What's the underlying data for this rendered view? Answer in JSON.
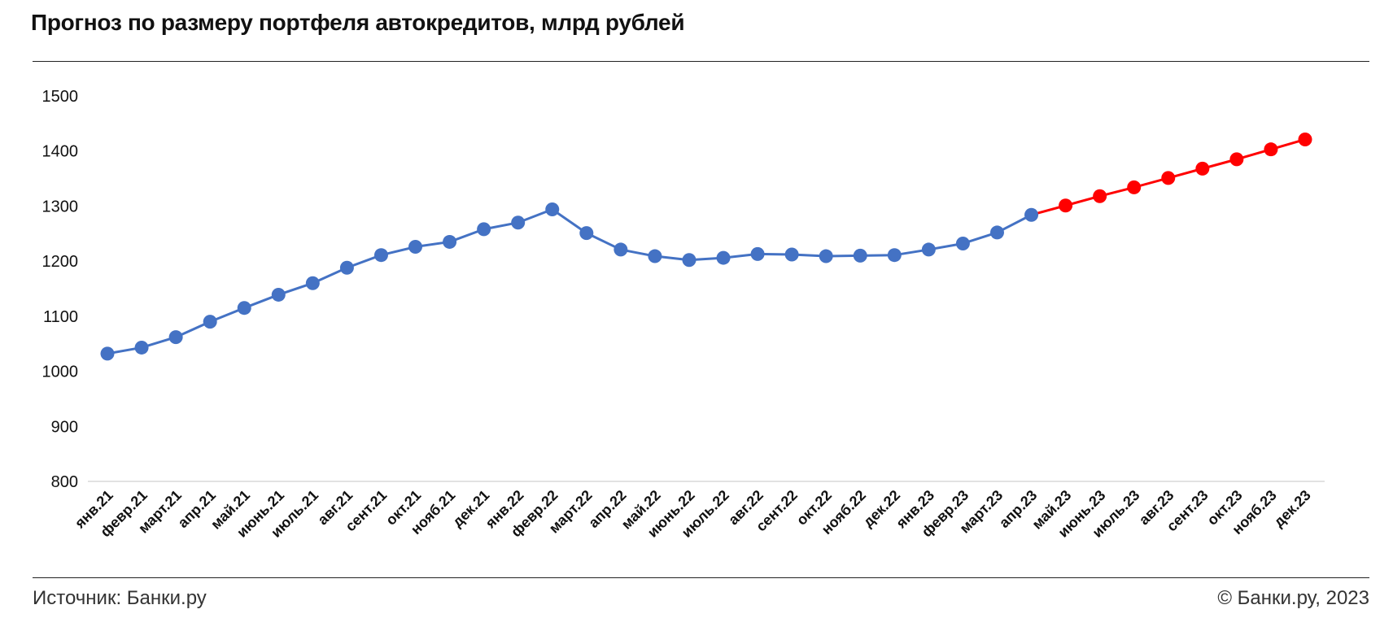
{
  "header": {
    "title": "Прогноз по размеру портфеля автокредитов, млрд рублей"
  },
  "footer": {
    "source": "Источник: Банки.ру",
    "copyright": "© Банки.ру, 2023"
  },
  "colors": {
    "actual": "#4472C4",
    "forecast": "#FF0000",
    "axis": "#d9d9d9"
  },
  "chart_data": {
    "type": "line",
    "title": "Прогноз по размеру портфеля автокредитов, млрд рублей",
    "categories": [
      "янв.21",
      "февр.21",
      "март.21",
      "апр.21",
      "май.21",
      "июнь.21",
      "июль.21",
      "авг.21",
      "сент.21",
      "окт.21",
      "нояб.21",
      "дек.21",
      "янв.22",
      "февр.22",
      "март.22",
      "апр.22",
      "май.22",
      "июнь.22",
      "июль.22",
      "авг.22",
      "сент.22",
      "окт.22",
      "нояб.22",
      "дек.22",
      "янв.23",
      "февр.23",
      "март.23",
      "апр.23",
      "май.23",
      "июнь.23",
      "июль.23",
      "авг.23",
      "сент.23",
      "окт.23",
      "нояб.23",
      "дек.23"
    ],
    "series": [
      {
        "values": [
          1032,
          1043,
          1062,
          1090,
          1115,
          1139,
          1160,
          1188,
          1211,
          1226,
          1235,
          1258,
          1270,
          1294,
          1251,
          1221,
          1209,
          1202,
          1206,
          1213,
          1212,
          1209,
          1210,
          1211,
          1221,
          1232,
          1252,
          1284,
          null,
          null,
          null,
          null,
          null,
          null,
          null,
          null
        ]
      },
      {
        "values": [
          null,
          null,
          null,
          null,
          null,
          null,
          null,
          null,
          null,
          null,
          null,
          null,
          null,
          null,
          null,
          null,
          null,
          null,
          null,
          null,
          null,
          null,
          null,
          null,
          null,
          null,
          null,
          1284,
          1301,
          1318,
          1334,
          1351,
          1368,
          1385,
          1403,
          1421
        ]
      }
    ],
    "yticks": [
      800,
      900,
      1000,
      1100,
      1200,
      1300,
      1400,
      1500
    ],
    "ylim": [
      800,
      1500
    ],
    "xlabel": "",
    "ylabel": "",
    "grid": false,
    "legend": "none"
  }
}
